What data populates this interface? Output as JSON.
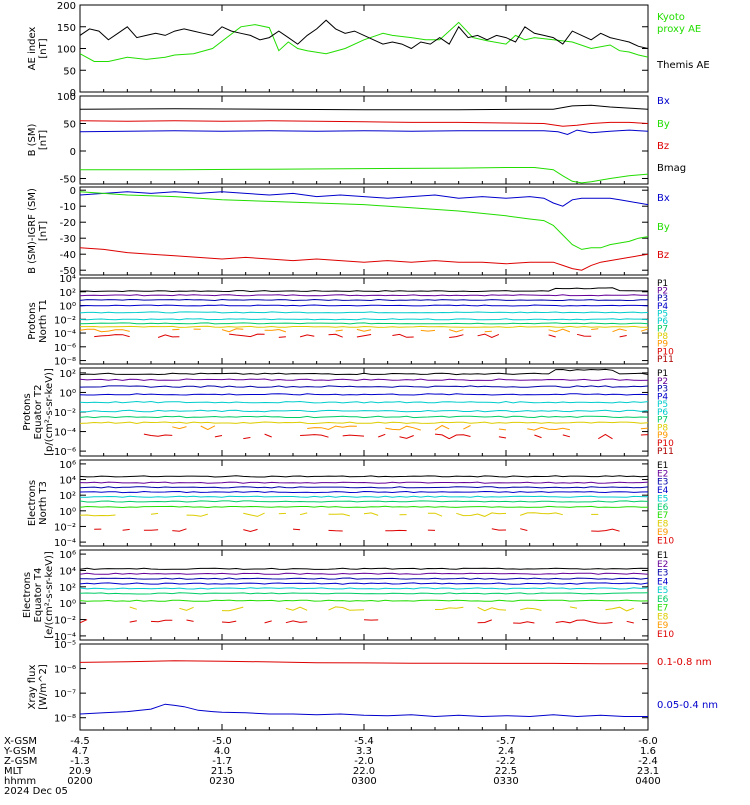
{
  "colors": {
    "black": "#000000",
    "green": "#22dd00",
    "blue": "#0000cc",
    "red": "#dd0000",
    "purple": "#660099",
    "navy": "#0000aa",
    "cyan": "#00cccc",
    "mid_green": "#00cc66",
    "yellow": "#ddcc00",
    "orange": "#ff9900",
    "dark_red": "#aa0000"
  },
  "chart_data": [
    {
      "type": "line",
      "panel": "ae",
      "ylabel": "AE index [nT]",
      "ylim": [
        0,
        200
      ],
      "ytick_labels": [
        "0",
        "50",
        "100",
        "150",
        "200"
      ],
      "ytick_values": [
        0,
        50,
        100,
        150,
        200
      ],
      "x_range": [
        0,
        120
      ],
      "series": [
        {
          "name": "Kyoto proxy AE",
          "label_lines": [
            "Kyoto",
            "proxy AE"
          ],
          "color_key": "green",
          "x": [
            0,
            3,
            6,
            10,
            14,
            18,
            20,
            24,
            28,
            31,
            34,
            37,
            40,
            42,
            44,
            46,
            48,
            52,
            56,
            60,
            64,
            66,
            70,
            73,
            76,
            80,
            83,
            86,
            90,
            92,
            94,
            96,
            100,
            104,
            108,
            112,
            114,
            116,
            118,
            120
          ],
          "y": [
            88,
            70,
            70,
            80,
            75,
            80,
            85,
            88,
            100,
            125,
            150,
            155,
            148,
            95,
            115,
            100,
            95,
            88,
            100,
            120,
            135,
            130,
            125,
            120,
            120,
            160,
            125,
            118,
            110,
            130,
            120,
            125,
            120,
            115,
            100,
            108,
            95,
            92,
            85,
            80
          ]
        },
        {
          "name": "Themis AE",
          "label_lines": [
            "Themis AE"
          ],
          "color_key": "black",
          "x": [
            0,
            2,
            4,
            6,
            8,
            10,
            12,
            14,
            16,
            18,
            20,
            22,
            24,
            26,
            28,
            30,
            32,
            34,
            36,
            38,
            40,
            42,
            44,
            46,
            48,
            50,
            52,
            54,
            56,
            58,
            60,
            62,
            64,
            66,
            68,
            70,
            72,
            74,
            76,
            78,
            80,
            82,
            84,
            86,
            88,
            90,
            92,
            94,
            96,
            98,
            100,
            102,
            104,
            106,
            108,
            110,
            112,
            114,
            116,
            118,
            120
          ],
          "y": [
            130,
            145,
            140,
            120,
            135,
            150,
            125,
            130,
            135,
            130,
            140,
            145,
            140,
            135,
            130,
            150,
            140,
            135,
            130,
            120,
            125,
            140,
            125,
            110,
            130,
            145,
            165,
            145,
            135,
            140,
            130,
            120,
            110,
            115,
            110,
            100,
            115,
            110,
            125,
            110,
            150,
            125,
            130,
            120,
            130,
            125,
            115,
            150,
            135,
            130,
            125,
            110,
            140,
            130,
            120,
            135,
            125,
            120,
            115,
            105,
            100
          ]
        }
      ]
    },
    {
      "type": "line",
      "panel": "b_sm",
      "ylabel": "B (SM) [nT]",
      "ylim": [
        -60,
        100
      ],
      "ytick_labels": [
        "-50",
        "0",
        "50",
        "100"
      ],
      "ytick_values": [
        -50,
        0,
        50,
        100
      ],
      "x_range": [
        0,
        120
      ],
      "series": [
        {
          "name": "Bx",
          "color_key": "blue",
          "x": [
            0,
            10,
            20,
            30,
            40,
            50,
            60,
            70,
            80,
            90,
            98,
            101,
            103,
            105,
            108,
            112,
            116,
            120
          ],
          "y": [
            35,
            36,
            37,
            36,
            37,
            36,
            37,
            36,
            37,
            37,
            37,
            35,
            30,
            38,
            33,
            36,
            38,
            36
          ]
        },
        {
          "name": "By",
          "color_key": "green",
          "x": [
            0,
            20,
            40,
            60,
            80,
            90,
            96,
            100,
            102,
            104,
            106,
            108,
            112,
            116,
            120
          ],
          "y": [
            -34,
            -34,
            -33,
            -32,
            -31,
            -30,
            -30,
            -34,
            -45,
            -55,
            -58,
            -56,
            -50,
            -45,
            -42
          ]
        },
        {
          "name": "Bz",
          "color_key": "red",
          "x": [
            0,
            10,
            20,
            30,
            40,
            50,
            60,
            70,
            80,
            90,
            98,
            102,
            105,
            108,
            112,
            116,
            120
          ],
          "y": [
            55,
            54,
            55,
            54,
            55,
            54,
            53,
            52,
            52,
            51,
            50,
            45,
            47,
            50,
            52,
            52,
            50
          ]
        },
        {
          "name": "Bmag",
          "color_key": "black",
          "x": [
            0,
            20,
            40,
            60,
            80,
            95,
            100,
            104,
            108,
            112,
            116,
            120
          ],
          "y": [
            76,
            77,
            76,
            75,
            75,
            76,
            76,
            82,
            83,
            80,
            78,
            76
          ]
        }
      ]
    },
    {
      "type": "line",
      "panel": "b_igrf",
      "ylabel": "B (SM)-IGRF (SM) [nT]",
      "ylim": [
        -53,
        2
      ],
      "ytick_labels": [
        "-50",
        "-40",
        "-30",
        "-20",
        "-10",
        "0"
      ],
      "ytick_values": [
        -50,
        -40,
        -30,
        -20,
        -10,
        0
      ],
      "x_range": [
        0,
        120
      ],
      "series": [
        {
          "name": "Bx",
          "color_key": "blue",
          "x": [
            0,
            5,
            10,
            15,
            20,
            25,
            30,
            35,
            40,
            45,
            50,
            55,
            60,
            65,
            70,
            75,
            80,
            85,
            90,
            95,
            98,
            100,
            102,
            104,
            106,
            108,
            110,
            112,
            114,
            116,
            118,
            120
          ],
          "y": [
            -3,
            -2,
            -1,
            -2,
            -1,
            -2,
            -1,
            -2,
            -3,
            -2,
            -4,
            -3,
            -4,
            -5,
            -4,
            -3,
            -5,
            -4,
            -5,
            -4,
            -5,
            -8,
            -10,
            -6,
            -5,
            -5,
            -5,
            -5,
            -6,
            -7,
            -8,
            -9
          ]
        },
        {
          "name": "By",
          "color_key": "green",
          "x": [
            0,
            10,
            20,
            30,
            40,
            50,
            60,
            70,
            80,
            90,
            95,
            98,
            100,
            102,
            104,
            106,
            108,
            110,
            112,
            114,
            116,
            118,
            120
          ],
          "y": [
            -1,
            -3,
            -4,
            -6,
            -7,
            -8,
            -9,
            -11,
            -13,
            -16,
            -18,
            -19,
            -22,
            -28,
            -34,
            -37,
            -36,
            -36,
            -34,
            -33,
            -32,
            -30,
            -29
          ]
        },
        {
          "name": "Bz",
          "color_key": "red",
          "x": [
            0,
            5,
            10,
            15,
            20,
            25,
            30,
            35,
            40,
            45,
            50,
            55,
            60,
            65,
            70,
            75,
            80,
            85,
            90,
            95,
            100,
            102,
            104,
            106,
            108,
            110,
            112,
            114,
            116,
            118,
            120
          ],
          "y": [
            -36,
            -37,
            -39,
            -40,
            -41,
            -42,
            -43,
            -42,
            -43,
            -44,
            -43,
            -44,
            -45,
            -44,
            -45,
            -44,
            -45,
            -45,
            -46,
            -45,
            -45,
            -47,
            -49,
            -50,
            -47,
            -45,
            -44,
            -43,
            -42,
            -41,
            -40
          ]
        }
      ]
    },
    {
      "type": "line",
      "panel": "protons_north",
      "ylabel": "Protons North T1",
      "ylim_log10": [
        -8.5,
        4
      ],
      "ytick_labels": [
        "10⁴",
        "10²",
        "10⁰",
        "10⁻²",
        "10⁻⁴",
        "10⁻⁶",
        "10⁻⁸"
      ],
      "ytick_values": [
        4,
        2,
        0,
        -2,
        -4,
        -6,
        -8
      ],
      "x_range": [
        0,
        120
      ],
      "channels": [
        "P1",
        "P2",
        "P3",
        "P4",
        "P5",
        "P6",
        "P7",
        "P8",
        "P9",
        "P10",
        "P11"
      ],
      "channel_colors": [
        "black",
        "purple",
        "navy",
        "blue",
        "cyan",
        "cyan",
        "mid_green",
        "yellow",
        "orange",
        "red",
        "dark_red"
      ],
      "log_levels": [
        2.1,
        1.5,
        0.8,
        0.0,
        -1.0,
        -2.0,
        -2.6,
        -3.1,
        -3.6,
        -4.4,
        null
      ]
    },
    {
      "type": "line",
      "panel": "protons_equator",
      "ylabel": "Protons Equator T2 [p/(cm²-s-sr-keV)]",
      "ylim_log10": [
        -6.5,
        2.5
      ],
      "ytick_labels": [
        "10²",
        "10⁰",
        "10⁻²",
        "10⁻⁴",
        "10⁻⁶"
      ],
      "ytick_values": [
        2,
        0,
        -2,
        -4,
        -6
      ],
      "x_range": [
        0,
        120
      ],
      "channels": [
        "P1",
        "P2",
        "P3",
        "P4",
        "P5",
        "P6",
        "P7",
        "P8",
        "P9",
        "P10",
        "P11"
      ],
      "channel_colors": [
        "black",
        "purple",
        "navy",
        "blue",
        "cyan",
        "cyan",
        "mid_green",
        "yellow",
        "orange",
        "red",
        "dark_red"
      ],
      "log_levels": [
        1.9,
        1.3,
        0.6,
        -0.2,
        -1.0,
        -1.9,
        -2.5,
        -3.1,
        -3.6,
        -4.5,
        null
      ]
    },
    {
      "type": "line",
      "panel": "electrons_north",
      "ylabel": "Electrons North T3",
      "ylim_log10": [
        -4.5,
        6.5
      ],
      "ytick_labels": [
        "10⁶",
        "10⁴",
        "10²",
        "10⁰",
        "10⁻²",
        "10⁻⁴"
      ],
      "ytick_values": [
        6,
        4,
        2,
        0,
        -2,
        -4
      ],
      "x_range": [
        0,
        120
      ],
      "channels": [
        "E1",
        "E2",
        "E3",
        "E4",
        "E5",
        "E6",
        "E7",
        "E8",
        "E9",
        "E10"
      ],
      "channel_colors": [
        "black",
        "purple",
        "navy",
        "blue",
        "cyan",
        "mid_green",
        "green",
        "yellow",
        "orange",
        "red"
      ],
      "log_levels": [
        4.4,
        3.6,
        3.0,
        2.4,
        1.8,
        1.2,
        0.5,
        -0.5,
        null,
        -2.5
      ]
    },
    {
      "type": "line",
      "panel": "electrons_equator",
      "ylabel": "Electrons Equator T4 [e/(cm²-s-sr-keV)]",
      "ylim_log10": [
        -4.5,
        6.5
      ],
      "ytick_labels": [
        "10⁶",
        "10⁴",
        "10²",
        "10⁰",
        "10⁻²",
        "10⁻⁴"
      ],
      "ytick_values": [
        6,
        4,
        2,
        0,
        -2,
        -4
      ],
      "x_range": [
        0,
        120
      ],
      "channels": [
        "E1",
        "E2",
        "E3",
        "E4",
        "E5",
        "E6",
        "E7",
        "E8",
        "E9",
        "E10"
      ],
      "channel_colors": [
        "black",
        "purple",
        "navy",
        "blue",
        "cyan",
        "mid_green",
        "green",
        "yellow",
        "orange",
        "red"
      ],
      "log_levels": [
        4.2,
        3.6,
        3.0,
        2.4,
        1.8,
        1.2,
        0.3,
        -0.7,
        null,
        -2.2
      ]
    },
    {
      "type": "line",
      "panel": "xray",
      "ylabel": "Xray flux [W/m^2]",
      "ylim_log10": [
        -8.5,
        -5
      ],
      "ytick_labels": [
        "10⁻⁵",
        "10⁻⁶",
        "10⁻⁷",
        "10⁻⁸"
      ],
      "ytick_values": [
        -5,
        -6,
        -7,
        -8
      ],
      "x_range": [
        0,
        120
      ],
      "series": [
        {
          "name": "0.1-0.8 nm",
          "color_key": "red",
          "x": [
            0,
            10,
            20,
            30,
            40,
            50,
            60,
            70,
            80,
            90,
            100,
            110,
            120
          ],
          "log_y": [
            -5.75,
            -5.72,
            -5.68,
            -5.7,
            -5.73,
            -5.76,
            -5.77,
            -5.78,
            -5.78,
            -5.79,
            -5.79,
            -5.8,
            -5.8
          ]
        },
        {
          "name": "0.05-0.4 nm",
          "color_key": "blue",
          "x": [
            0,
            5,
            10,
            15,
            18,
            20,
            22,
            25,
            28,
            30,
            35,
            40,
            45,
            50,
            55,
            60,
            65,
            70,
            75,
            80,
            85,
            90,
            95,
            100,
            105,
            110,
            115,
            120
          ],
          "log_y": [
            -7.85,
            -7.8,
            -7.75,
            -7.65,
            -7.45,
            -7.5,
            -7.55,
            -7.7,
            -7.75,
            -7.78,
            -7.8,
            -7.85,
            -7.85,
            -7.88,
            -7.85,
            -7.9,
            -7.92,
            -7.88,
            -7.95,
            -7.9,
            -7.95,
            -7.92,
            -7.95,
            -7.88,
            -7.95,
            -7.9,
            -7.95,
            -7.95
          ]
        }
      ]
    }
  ],
  "ephemeris": {
    "row_labels": [
      "X-GSM",
      "Y-GSM",
      "Z-GSM",
      "MLT",
      "hhmm"
    ],
    "date": "2024 Dec 05",
    "columns": [
      {
        "x": 0,
        "values": [
          "-4.5",
          "4.7",
          "-1.3",
          "20.9",
          "0200"
        ]
      },
      {
        "x": 30,
        "values": [
          "-5.0",
          "4.0",
          "-1.7",
          "21.5",
          "0230"
        ]
      },
      {
        "x": 60,
        "values": [
          "-5.4",
          "3.3",
          "-2.0",
          "22.0",
          "0300"
        ]
      },
      {
        "x": 90,
        "values": [
          "-5.7",
          "2.4",
          "-2.2",
          "22.5",
          "0330"
        ]
      },
      {
        "x": 120,
        "values": [
          "-6.0",
          "1.6",
          "-2.4",
          "23.1",
          "0400"
        ]
      }
    ]
  }
}
